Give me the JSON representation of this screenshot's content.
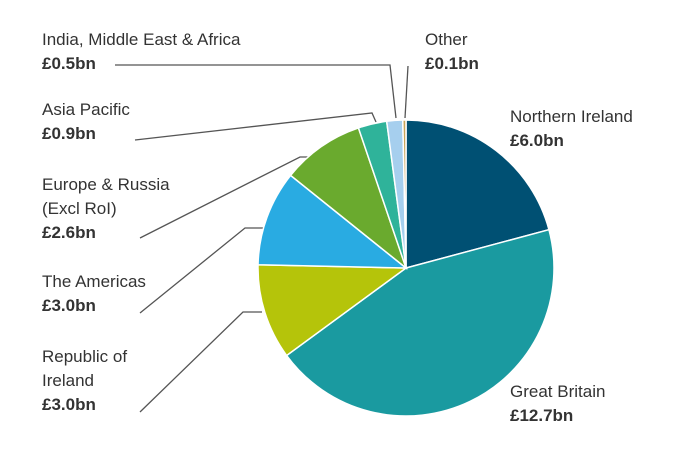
{
  "chart_data": {
    "type": "pie",
    "categories": [
      "Northern Ireland",
      "Great Britain",
      "Republic of\nIreland",
      "The Americas",
      "Europe & Russia\n(Excl RoI)",
      "Asia Pacific",
      "India, Middle East & Africa",
      "Other"
    ],
    "values": [
      6.0,
      12.7,
      3.0,
      3.0,
      2.6,
      0.9,
      0.5,
      0.1
    ],
    "value_labels": [
      "£6.0bn",
      "£12.7bn",
      "£3.0bn",
      "£3.0bn",
      "£2.6bn",
      "£0.9bn",
      "£0.5bn",
      "£0.1bn"
    ],
    "colors": [
      "#005073",
      "#1a9aa0",
      "#b5c40a",
      "#29abe2",
      "#6aaa2e",
      "#2fb39a",
      "#a6cfee",
      "#c9a55a"
    ]
  }
}
